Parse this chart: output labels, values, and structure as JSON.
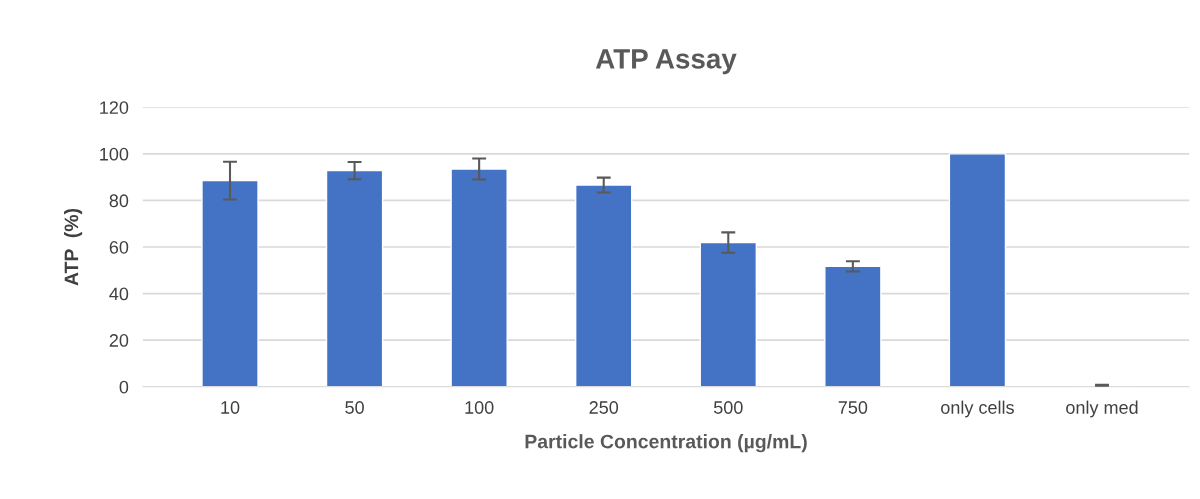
{
  "chart_data": {
    "type": "bar",
    "title": "ATP Assay",
    "xlabel": "Particle Concentration (µg/mL)",
    "ylabel": "ATP  (%)",
    "categories": [
      "10",
      "50",
      "100",
      "250",
      "500",
      "750",
      "only cells",
      "only med"
    ],
    "values": [
      88.5,
      92.8,
      93.5,
      86.6,
      61.9,
      51.7,
      100,
      0.5
    ],
    "errors": [
      8.1,
      3.7,
      4.5,
      3.2,
      4.4,
      2.2,
      null,
      0.3
    ],
    "color": "#4472c4",
    "ylim": [
      0,
      120
    ],
    "yticks": [
      0,
      20,
      40,
      60,
      80,
      100,
      120
    ],
    "grid": "y"
  }
}
